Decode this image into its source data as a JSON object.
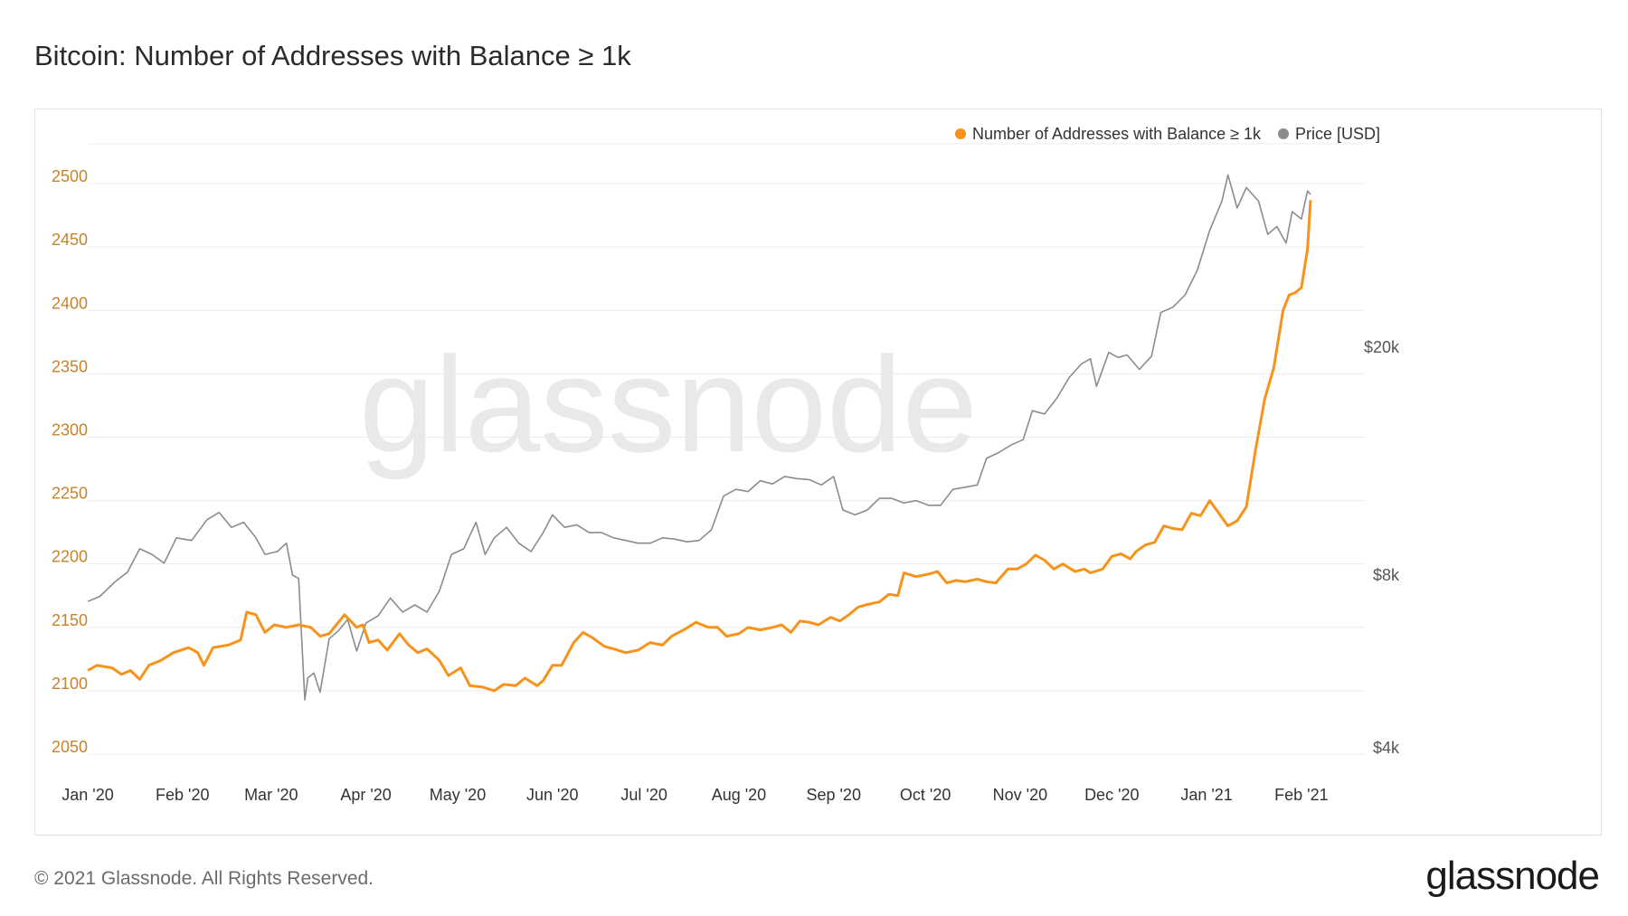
{
  "header": {
    "title": "Bitcoin: Number of Addresses with Balance ≥ 1k"
  },
  "footer": {
    "copyright": "© 2021 Glassnode. All Rights Reserved.",
    "logo_text": "glassnode"
  },
  "watermark": "glassnode",
  "colors": {
    "addresses": "#f7931a",
    "price": "#8c8c8c",
    "left_axis_text": "#c9822a",
    "right_axis_text": "#555555",
    "grid": "#ececec"
  },
  "chart_data": {
    "type": "line",
    "title": "Bitcoin: Number of Addresses with Balance ≥ 1k",
    "legend_position": "top-right",
    "grid": true,
    "y_left": {
      "ticks": [
        2050,
        2100,
        2150,
        2200,
        2250,
        2300,
        2350,
        2400,
        2450,
        2500
      ],
      "range": [
        2045,
        2530
      ]
    },
    "y_right": {
      "scale": "log",
      "ticks": [
        4000,
        8000,
        20000
      ],
      "tick_labels": [
        "$4k",
        "$8k",
        "$20k"
      ],
      "range": [
        3800,
        45000
      ]
    },
    "x_ticks": [
      "Jan '20",
      "Feb '20",
      "Mar '20",
      "Apr '20",
      "May '20",
      "Jun '20",
      "Jul '20",
      "Aug '20",
      "Sep '20",
      "Oct '20",
      "Nov '20",
      "Dec '20",
      "Jan '21",
      "Feb '21"
    ],
    "x_tick_dates": [
      "2020-01-01",
      "2020-02-01",
      "2020-03-01",
      "2020-04-01",
      "2020-05-01",
      "2020-06-01",
      "2020-07-01",
      "2020-08-01",
      "2020-09-01",
      "2020-10-01",
      "2020-11-01",
      "2020-12-01",
      "2021-01-01",
      "2021-02-01"
    ],
    "x_range": [
      "2020-01-01",
      "2021-02-04"
    ],
    "series": [
      {
        "name": "Number of Addresses with Balance ≥ 1k",
        "axis": "left",
        "points": [
          [
            "2020-01-01",
            2116
          ],
          [
            "2020-01-04",
            2120
          ],
          [
            "2020-01-09",
            2118
          ],
          [
            "2020-01-12",
            2113
          ],
          [
            "2020-01-15",
            2116
          ],
          [
            "2020-01-18",
            2109
          ],
          [
            "2020-01-21",
            2120
          ],
          [
            "2020-01-25",
            2124
          ],
          [
            "2020-01-29",
            2130
          ],
          [
            "2020-02-03",
            2134
          ],
          [
            "2020-02-06",
            2130
          ],
          [
            "2020-02-08",
            2120
          ],
          [
            "2020-02-11",
            2134
          ],
          [
            "2020-02-16",
            2136
          ],
          [
            "2020-02-20",
            2140
          ],
          [
            "2020-02-22",
            2162
          ],
          [
            "2020-02-25",
            2160
          ],
          [
            "2020-02-28",
            2146
          ],
          [
            "2020-03-02",
            2152
          ],
          [
            "2020-03-06",
            2150
          ],
          [
            "2020-03-10",
            2152
          ],
          [
            "2020-03-14",
            2150
          ],
          [
            "2020-03-17",
            2143
          ],
          [
            "2020-03-20",
            2145
          ],
          [
            "2020-03-25",
            2160
          ],
          [
            "2020-03-29",
            2150
          ],
          [
            "2020-03-31",
            2152
          ],
          [
            "2020-04-02",
            2138
          ],
          [
            "2020-04-05",
            2140
          ],
          [
            "2020-04-08",
            2132
          ],
          [
            "2020-04-12",
            2145
          ],
          [
            "2020-04-15",
            2136
          ],
          [
            "2020-04-18",
            2130
          ],
          [
            "2020-04-21",
            2133
          ],
          [
            "2020-04-25",
            2124
          ],
          [
            "2020-04-28",
            2112
          ],
          [
            "2020-05-02",
            2118
          ],
          [
            "2020-05-05",
            2104
          ],
          [
            "2020-05-09",
            2103
          ],
          [
            "2020-05-13",
            2100
          ],
          [
            "2020-05-16",
            2105
          ],
          [
            "2020-05-20",
            2104
          ],
          [
            "2020-05-23",
            2110
          ],
          [
            "2020-05-27",
            2104
          ],
          [
            "2020-05-29",
            2108
          ],
          [
            "2020-06-01",
            2120
          ],
          [
            "2020-06-04",
            2120
          ],
          [
            "2020-06-08",
            2138
          ],
          [
            "2020-06-11",
            2146
          ],
          [
            "2020-06-14",
            2142
          ],
          [
            "2020-06-18",
            2135
          ],
          [
            "2020-06-21",
            2133
          ],
          [
            "2020-06-25",
            2130
          ],
          [
            "2020-06-29",
            2132
          ],
          [
            "2020-07-03",
            2138
          ],
          [
            "2020-07-07",
            2136
          ],
          [
            "2020-07-10",
            2143
          ],
          [
            "2020-07-14",
            2148
          ],
          [
            "2020-07-18",
            2154
          ],
          [
            "2020-07-22",
            2150
          ],
          [
            "2020-07-25",
            2150
          ],
          [
            "2020-07-28",
            2143
          ],
          [
            "2020-08-01",
            2145
          ],
          [
            "2020-08-04",
            2150
          ],
          [
            "2020-08-08",
            2148
          ],
          [
            "2020-08-12",
            2150
          ],
          [
            "2020-08-15",
            2152
          ],
          [
            "2020-08-18",
            2146
          ],
          [
            "2020-08-21",
            2155
          ],
          [
            "2020-08-24",
            2154
          ],
          [
            "2020-08-27",
            2152
          ],
          [
            "2020-08-31",
            2158
          ],
          [
            "2020-09-03",
            2155
          ],
          [
            "2020-09-06",
            2160
          ],
          [
            "2020-09-09",
            2166
          ],
          [
            "2020-09-12",
            2168
          ],
          [
            "2020-09-16",
            2170
          ],
          [
            "2020-09-19",
            2176
          ],
          [
            "2020-09-22",
            2175
          ],
          [
            "2020-09-24",
            2193
          ],
          [
            "2020-09-28",
            2190
          ],
          [
            "2020-10-02",
            2192
          ],
          [
            "2020-10-05",
            2194
          ],
          [
            "2020-10-08",
            2185
          ],
          [
            "2020-10-11",
            2187
          ],
          [
            "2020-10-14",
            2186
          ],
          [
            "2020-10-18",
            2188
          ],
          [
            "2020-10-21",
            2186
          ],
          [
            "2020-10-24",
            2185
          ],
          [
            "2020-10-28",
            2196
          ],
          [
            "2020-10-31",
            2196
          ],
          [
            "2020-11-03",
            2200
          ],
          [
            "2020-11-06",
            2207
          ],
          [
            "2020-11-09",
            2203
          ],
          [
            "2020-11-12",
            2196
          ],
          [
            "2020-11-15",
            2200
          ],
          [
            "2020-11-19",
            2194
          ],
          [
            "2020-11-22",
            2196
          ],
          [
            "2020-11-24",
            2193
          ],
          [
            "2020-11-28",
            2196
          ],
          [
            "2020-12-01",
            2206
          ],
          [
            "2020-12-04",
            2208
          ],
          [
            "2020-12-07",
            2204
          ],
          [
            "2020-12-09",
            2210
          ],
          [
            "2020-12-12",
            2215
          ],
          [
            "2020-12-15",
            2217
          ],
          [
            "2020-12-18",
            2230
          ],
          [
            "2020-12-21",
            2228
          ],
          [
            "2020-12-24",
            2227
          ],
          [
            "2020-12-27",
            2240
          ],
          [
            "2020-12-30",
            2238
          ],
          [
            "2021-01-02",
            2250
          ],
          [
            "2021-01-05",
            2240
          ],
          [
            "2021-01-08",
            2230
          ],
          [
            "2021-01-11",
            2234
          ],
          [
            "2021-01-14",
            2245
          ],
          [
            "2021-01-17",
            2290
          ],
          [
            "2021-01-20",
            2330
          ],
          [
            "2021-01-23",
            2355
          ],
          [
            "2021-01-26",
            2400
          ],
          [
            "2021-01-28",
            2412
          ],
          [
            "2021-01-30",
            2414
          ],
          [
            "2021-02-01",
            2418
          ],
          [
            "2021-02-03",
            2448
          ],
          [
            "2021-02-04",
            2487
          ]
        ]
      },
      {
        "name": "Price [USD]",
        "axis": "right",
        "points": [
          [
            "2020-01-01",
            7200
          ],
          [
            "2020-01-05",
            7350
          ],
          [
            "2020-01-10",
            7800
          ],
          [
            "2020-01-14",
            8100
          ],
          [
            "2020-01-18",
            8900
          ],
          [
            "2020-01-22",
            8700
          ],
          [
            "2020-01-26",
            8400
          ],
          [
            "2020-01-30",
            9300
          ],
          [
            "2020-02-04",
            9200
          ],
          [
            "2020-02-09",
            10000
          ],
          [
            "2020-02-13",
            10300
          ],
          [
            "2020-02-17",
            9700
          ],
          [
            "2020-02-21",
            9900
          ],
          [
            "2020-02-25",
            9300
          ],
          [
            "2020-02-28",
            8700
          ],
          [
            "2020-03-03",
            8800
          ],
          [
            "2020-03-06",
            9100
          ],
          [
            "2020-03-08",
            8000
          ],
          [
            "2020-03-10",
            7900
          ],
          [
            "2020-03-12",
            4850
          ],
          [
            "2020-03-13",
            5300
          ],
          [
            "2020-03-15",
            5400
          ],
          [
            "2020-03-17",
            5000
          ],
          [
            "2020-03-20",
            6200
          ],
          [
            "2020-03-23",
            6400
          ],
          [
            "2020-03-26",
            6700
          ],
          [
            "2020-03-29",
            5900
          ],
          [
            "2020-04-01",
            6600
          ],
          [
            "2020-04-05",
            6800
          ],
          [
            "2020-04-09",
            7300
          ],
          [
            "2020-04-13",
            6900
          ],
          [
            "2020-04-17",
            7100
          ],
          [
            "2020-04-21",
            6900
          ],
          [
            "2020-04-25",
            7500
          ],
          [
            "2020-04-29",
            8700
          ],
          [
            "2020-05-03",
            8900
          ],
          [
            "2020-05-07",
            9900
          ],
          [
            "2020-05-10",
            8700
          ],
          [
            "2020-05-13",
            9300
          ],
          [
            "2020-05-17",
            9700
          ],
          [
            "2020-05-21",
            9100
          ],
          [
            "2020-05-25",
            8800
          ],
          [
            "2020-05-29",
            9500
          ],
          [
            "2020-06-01",
            10200
          ],
          [
            "2020-06-05",
            9700
          ],
          [
            "2020-06-09",
            9800
          ],
          [
            "2020-06-13",
            9500
          ],
          [
            "2020-06-17",
            9500
          ],
          [
            "2020-06-21",
            9300
          ],
          [
            "2020-06-25",
            9200
          ],
          [
            "2020-06-29",
            9100
          ],
          [
            "2020-07-03",
            9100
          ],
          [
            "2020-07-07",
            9300
          ],
          [
            "2020-07-11",
            9250
          ],
          [
            "2020-07-15",
            9150
          ],
          [
            "2020-07-19",
            9200
          ],
          [
            "2020-07-23",
            9600
          ],
          [
            "2020-07-27",
            11000
          ],
          [
            "2020-07-31",
            11300
          ],
          [
            "2020-08-04",
            11200
          ],
          [
            "2020-08-08",
            11700
          ],
          [
            "2020-08-12",
            11550
          ],
          [
            "2020-08-16",
            11900
          ],
          [
            "2020-08-20",
            11800
          ],
          [
            "2020-08-24",
            11750
          ],
          [
            "2020-08-28",
            11500
          ],
          [
            "2020-09-01",
            11900
          ],
          [
            "2020-09-04",
            10400
          ],
          [
            "2020-09-08",
            10200
          ],
          [
            "2020-09-12",
            10400
          ],
          [
            "2020-09-16",
            10900
          ],
          [
            "2020-09-20",
            10900
          ],
          [
            "2020-09-24",
            10700
          ],
          [
            "2020-09-28",
            10800
          ],
          [
            "2020-10-02",
            10600
          ],
          [
            "2020-10-06",
            10600
          ],
          [
            "2020-10-10",
            11300
          ],
          [
            "2020-10-14",
            11400
          ],
          [
            "2020-10-18",
            11500
          ],
          [
            "2020-10-21",
            12800
          ],
          [
            "2020-10-25",
            13100
          ],
          [
            "2020-10-29",
            13500
          ],
          [
            "2020-11-02",
            13800
          ],
          [
            "2020-11-05",
            15500
          ],
          [
            "2020-11-09",
            15300
          ],
          [
            "2020-11-13",
            16300
          ],
          [
            "2020-11-17",
            17700
          ],
          [
            "2020-11-21",
            18700
          ],
          [
            "2020-11-24",
            19100
          ],
          [
            "2020-11-26",
            17100
          ],
          [
            "2020-11-30",
            19600
          ],
          [
            "2020-12-03",
            19200
          ],
          [
            "2020-12-06",
            19400
          ],
          [
            "2020-12-10",
            18300
          ],
          [
            "2020-12-14",
            19300
          ],
          [
            "2020-12-17",
            23000
          ],
          [
            "2020-12-21",
            23500
          ],
          [
            "2020-12-25",
            24700
          ],
          [
            "2020-12-29",
            27300
          ],
          [
            "2021-01-02",
            32000
          ],
          [
            "2021-01-06",
            36000
          ],
          [
            "2021-01-08",
            40000
          ],
          [
            "2021-01-11",
            35000
          ],
          [
            "2021-01-14",
            38000
          ],
          [
            "2021-01-18",
            36000
          ],
          [
            "2021-01-21",
            31500
          ],
          [
            "2021-01-24",
            32500
          ],
          [
            "2021-01-27",
            30400
          ],
          [
            "2021-01-29",
            34500
          ],
          [
            "2021-02-01",
            33500
          ],
          [
            "2021-02-03",
            37500
          ],
          [
            "2021-02-04",
            37000
          ]
        ]
      }
    ]
  }
}
